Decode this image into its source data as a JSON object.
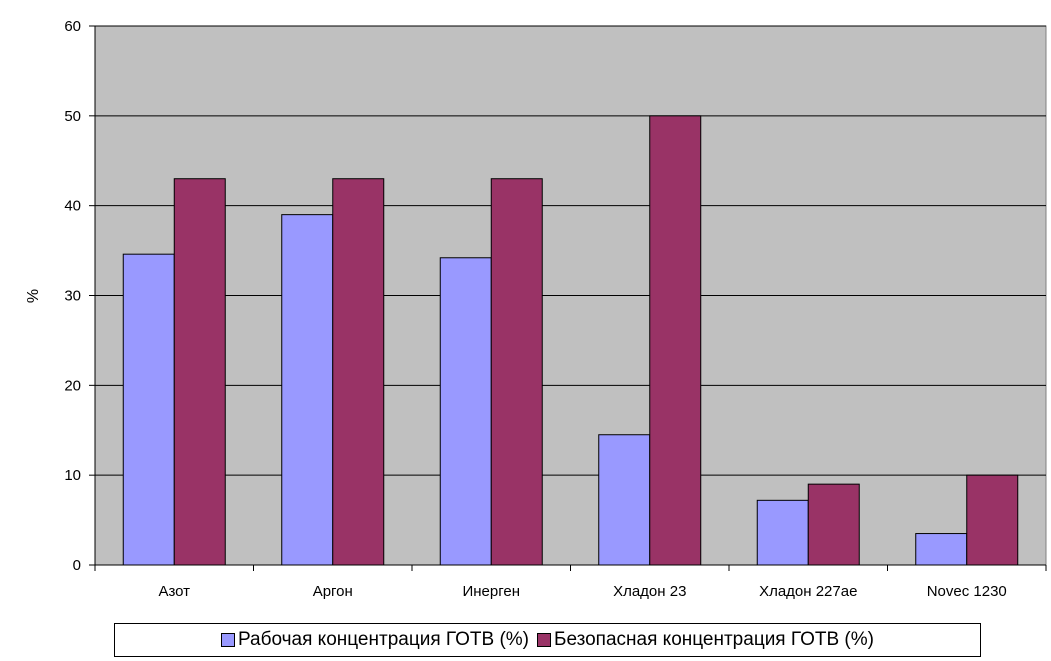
{
  "chart_data": {
    "type": "bar",
    "title": "",
    "xlabel": "",
    "ylabel": "%",
    "ylim": [
      0,
      60
    ],
    "yticks": [
      0,
      10,
      20,
      30,
      40,
      50,
      60
    ],
    "grid": true,
    "legend_position": "bottom",
    "plot_background": "#c0c0c0",
    "categories": [
      "Азот",
      "Аргон",
      "Инерген",
      "Хладон 23",
      "Хладон 227ае",
      "Novec 1230"
    ],
    "series": [
      {
        "name": "Рабочая концентрация ГОТВ (%)",
        "color": "#9999ff",
        "values": [
          34.6,
          39,
          34.2,
          14.5,
          7.2,
          3.5
        ]
      },
      {
        "name": "Безопасная концентрация ГОТВ (%)",
        "color": "#993366",
        "values": [
          43,
          43,
          43,
          50,
          9,
          10
        ]
      }
    ]
  }
}
